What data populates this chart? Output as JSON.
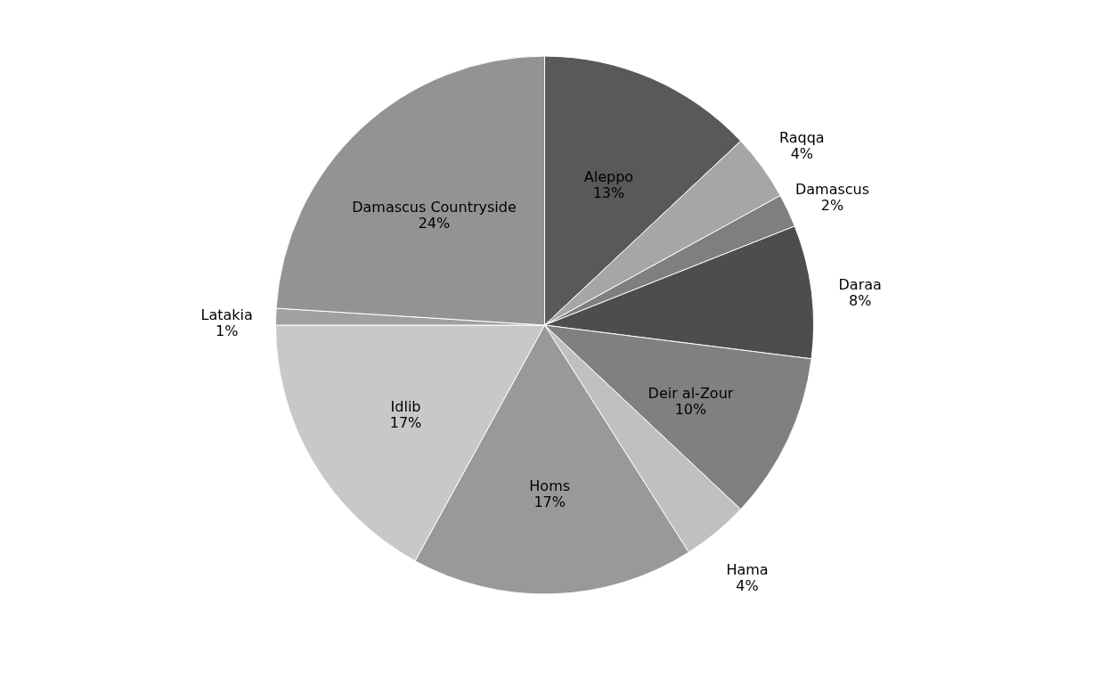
{
  "chart_data": {
    "type": "pie",
    "categories": [
      "Aleppo",
      "Raqqa",
      "Damascus",
      "Daraa",
      "Deir al-Zour",
      "Hama",
      "Homs",
      "Idlib",
      "Latakia",
      "Damascus Countryside"
    ],
    "values": [
      13,
      4,
      2,
      8,
      10,
      4,
      17,
      17,
      1,
      24
    ],
    "value_labels": [
      "13%",
      "4%",
      "2%",
      "8%",
      "10%",
      "4%",
      "17%",
      "17%",
      "1%",
      "24%"
    ],
    "colors": [
      "#595959",
      "#a6a6a6",
      "#7f7f7f",
      "#4d4d4d",
      "#808080",
      "#c0c0c0",
      "#999999",
      "#c8c8c8",
      "#a0a0a0",
      "#939393"
    ],
    "legend": false
  }
}
